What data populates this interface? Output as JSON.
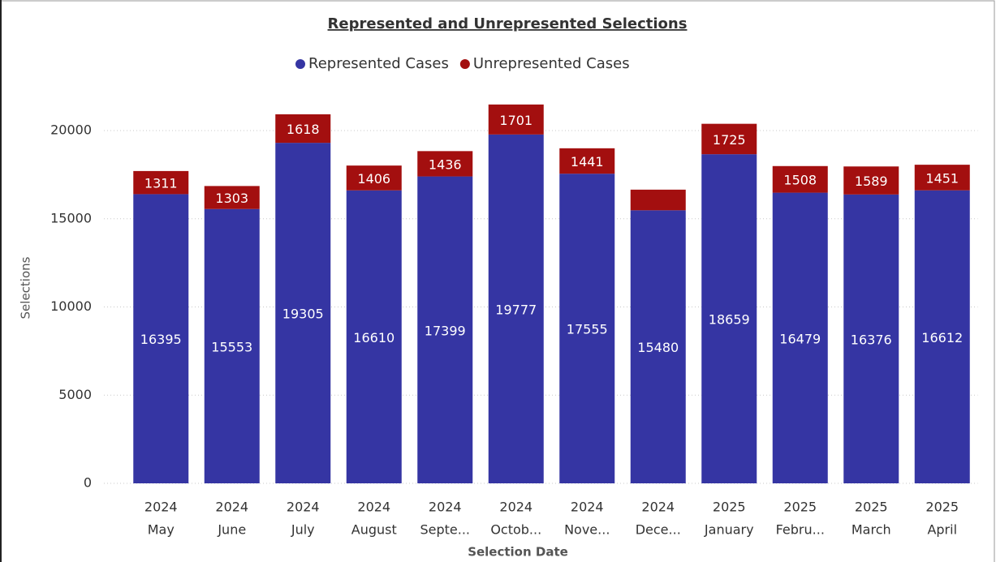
{
  "chart_data": {
    "type": "stacked_bar",
    "title": "Represented and Unrepresented Selections",
    "x_label": "Selection Date",
    "y_label": "Selections",
    "categories": [
      [
        "2024",
        "May"
      ],
      [
        "2024",
        "June"
      ],
      [
        "2024",
        "July"
      ],
      [
        "2024",
        "August"
      ],
      [
        "2024",
        "Septe..."
      ],
      [
        "2024",
        "Octob..."
      ],
      [
        "2024",
        "Nove..."
      ],
      [
        "2024",
        "Dece..."
      ],
      [
        "2025",
        "January"
      ],
      [
        "2025",
        "Febru..."
      ],
      [
        "2025",
        "March"
      ],
      [
        "2025",
        "April"
      ]
    ],
    "series": [
      {
        "name": "Represented Cases",
        "color": "#3535a3",
        "values": [
          16395,
          15553,
          19305,
          16610,
          17399,
          19777,
          17555,
          15480,
          18659,
          16479,
          16376,
          16612
        ]
      },
      {
        "name": "Unrepresented Cases",
        "color": "#a30f0f",
        "values": [
          1311,
          1303,
          1618,
          1406,
          1436,
          1701,
          1441,
          1170,
          1725,
          1508,
          1589,
          1451
        ],
        "value_labels": [
          "1311",
          "1303",
          "1618",
          "1406",
          "1436",
          "1701",
          "1441",
          null,
          "1725",
          "1508",
          "1589",
          "1451"
        ]
      }
    ],
    "ylim": [
      0,
      22000
    ],
    "yticks": [
      0,
      5000,
      10000,
      15000,
      20000
    ],
    "grid": true,
    "legend": "top"
  }
}
